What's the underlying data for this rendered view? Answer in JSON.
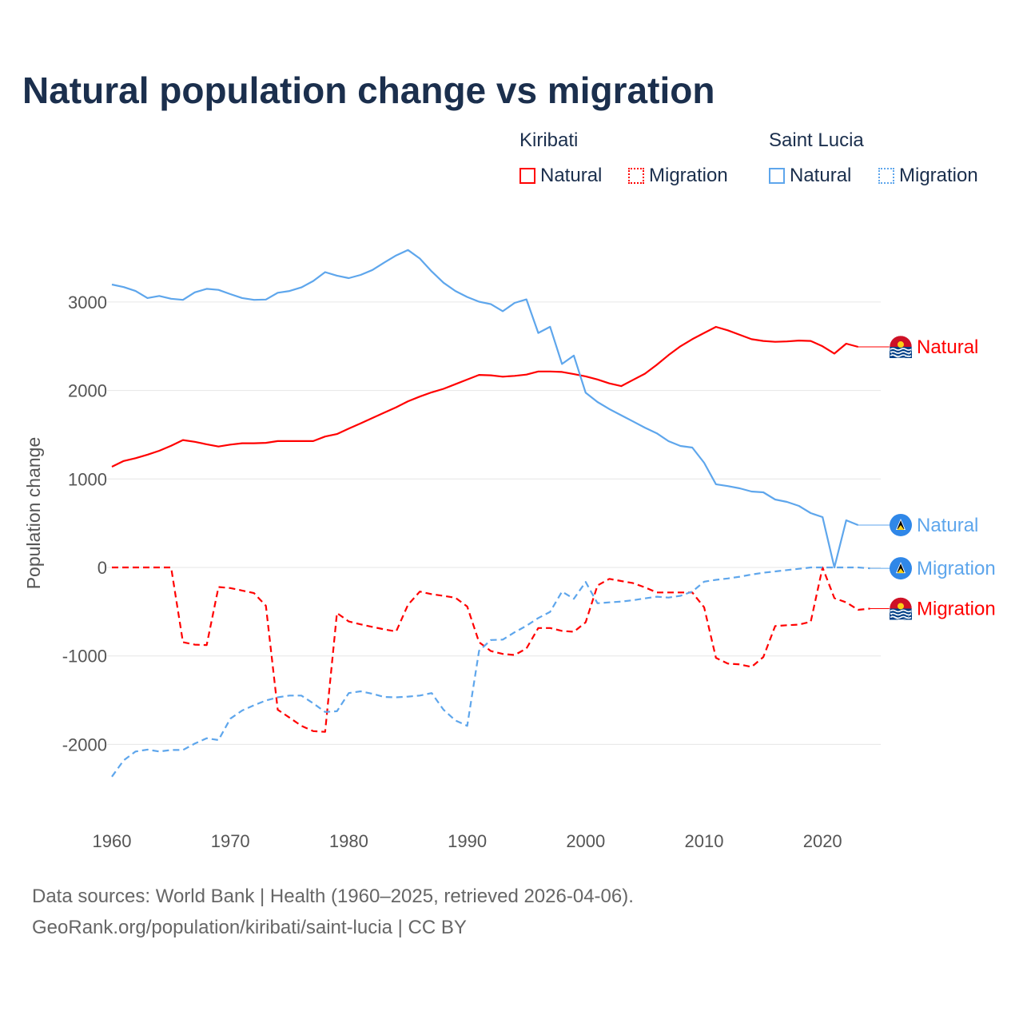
{
  "title": "Natural population change vs migration",
  "legend": {
    "groups": [
      {
        "name": "Kiribati",
        "items": [
          "Natural",
          "Migration"
        ]
      },
      {
        "name": "Saint Lucia",
        "items": [
          "Natural",
          "Migration"
        ]
      }
    ]
  },
  "footer": {
    "line1": "Data sources: World Bank | Health (1960–2025, retrieved 2026-04-06).",
    "line2": "GeoRank.org/population/kiribati/saint-lucia | CC BY"
  },
  "colors": {
    "kiribati": "#ff0000",
    "saint_lucia": "#5ea6ec",
    "text": "#1b2f4d"
  },
  "chart_data": {
    "type": "line",
    "title": "Natural population change vs migration",
    "xlabel": "",
    "ylabel": "Population change",
    "xlim": [
      1960,
      2025
    ],
    "ylim": [
      -2700,
      3700
    ],
    "grid": true,
    "legend_placement": "top-right",
    "x_ticks": [
      "1960",
      "1970",
      "1980",
      "1990",
      "2000",
      "2010",
      "2020"
    ],
    "y_ticks": [
      "3000",
      "2000",
      "1000",
      "0",
      "-1000",
      "-2000"
    ],
    "x_start": 1960,
    "series": [
      {
        "name": "Kiribati Natural",
        "end_label": "Natural",
        "country": "Kiribati",
        "style": "solid",
        "color": "#ff0000",
        "values": [
          1138,
          1203,
          1235,
          1275,
          1319,
          1376,
          1440,
          1420,
          1392,
          1367,
          1388,
          1404,
          1404,
          1408,
          1428,
          1428,
          1428,
          1428,
          1480,
          1508,
          1569,
          1629,
          1689,
          1750,
          1810,
          1878,
          1931,
          1979,
          2019,
          2071,
          2124,
          2176,
          2172,
          2156,
          2165,
          2180,
          2215,
          2215,
          2210,
          2185,
          2160,
          2125,
          2080,
          2050,
          2120,
          2190,
          2290,
          2400,
          2500,
          2580,
          2650,
          2719,
          2680,
          2630,
          2580,
          2560,
          2550,
          2555,
          2565,
          2560,
          2500,
          2417,
          2529,
          2493,
          null
        ]
      },
      {
        "name": "Kiribati Migration",
        "end_label": "Migration",
        "country": "Kiribati",
        "style": "dashed",
        "color": "#ff0000",
        "values": [
          0,
          0,
          0,
          0,
          0,
          0,
          -845,
          -873,
          -877,
          -221,
          -233,
          -261,
          -290,
          -434,
          -1609,
          -1697,
          -1790,
          -1850,
          -1858,
          -515,
          -611,
          -643,
          -672,
          -700,
          -724,
          -422,
          -273,
          -302,
          -322,
          -342,
          -442,
          -845,
          -945,
          -977,
          -990,
          -916,
          -685,
          -685,
          -717,
          -727,
          -620,
          -203,
          -129,
          -154,
          -177,
          -225,
          -283,
          -283,
          -283,
          -283,
          -450,
          -1022,
          -1087,
          -1096,
          -1125,
          -1013,
          -662,
          -653,
          -646,
          -614,
          0,
          -347,
          -395,
          -479,
          -465
        ]
      },
      {
        "name": "Saint Lucia Natural",
        "end_label": "Natural",
        "country": "Saint Lucia",
        "style": "solid",
        "color": "#5ea6ec",
        "values": [
          3198,
          3169,
          3125,
          3045,
          3069,
          3037,
          3024,
          3109,
          3149,
          3137,
          3089,
          3045,
          3024,
          3028,
          3105,
          3125,
          3165,
          3238,
          3338,
          3298,
          3270,
          3306,
          3362,
          3447,
          3527,
          3588,
          3491,
          3346,
          3218,
          3125,
          3057,
          3004,
          2976,
          2896,
          2990,
          3030,
          2650,
          2720,
          2300,
          2395,
          1975,
          1870,
          1790,
          1720,
          1650,
          1580,
          1517,
          1427,
          1373,
          1355,
          1183,
          940,
          920,
          894,
          858,
          849,
          768,
          741,
          696,
          614,
          569,
          0,
          533,
          479,
          null
        ]
      },
      {
        "name": "Saint Lucia Migration",
        "end_label": "Migration",
        "country": "Saint Lucia",
        "style": "dashed",
        "color": "#5ea6ec",
        "values": [
          -2365,
          -2180,
          -2080,
          -2059,
          -2080,
          -2063,
          -2063,
          -1991,
          -1930,
          -1951,
          -1709,
          -1617,
          -1557,
          -1504,
          -1468,
          -1448,
          -1448,
          -1536,
          -1633,
          -1625,
          -1420,
          -1400,
          -1428,
          -1464,
          -1468,
          -1460,
          -1448,
          -1420,
          -1609,
          -1729,
          -1790,
          -942,
          -820,
          -816,
          -733,
          -659,
          -572,
          -502,
          -273,
          -354,
          -164,
          -405,
          -395,
          -386,
          -370,
          -350,
          -331,
          -341,
          -321,
          -273,
          -161,
          -140,
          -125,
          -105,
          -80,
          -60,
          -45,
          -30,
          -15,
          0,
          0,
          0,
          0,
          0,
          -10
        ]
      }
    ]
  }
}
